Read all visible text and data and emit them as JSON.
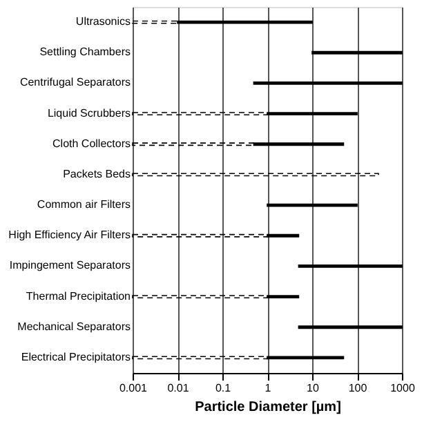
{
  "chart_data": {
    "type": "bar",
    "orientation": "horizontal",
    "xlabel": "Particle Diameter [µm]",
    "log": "x",
    "xlim": [
      0.001,
      1000
    ],
    "xticks": [
      0.001,
      0.01,
      0.1,
      1,
      10,
      100,
      1000
    ],
    "grid": "x",
    "categories": [
      "Ultrasonics",
      "Settling Chambers",
      "Centrifugal Separators",
      "Liquid Scrubbers",
      "Cloth Collectors",
      "Packets Beds",
      "Common air Filters",
      "High Efficiency Air Filters",
      "Impingement Separators",
      "Thermal Precipitation",
      "Mechanical Separators",
      "Electrical Precipitators"
    ],
    "series": [
      {
        "color": "#000000",
        "line_style": "solid",
        "base": [
          0.01,
          10,
          0.5,
          1,
          0.5,
          null,
          1,
          1,
          5,
          1,
          5,
          1
        ],
        "values": [
          9.99,
          990,
          999.5,
          99,
          49.5,
          null,
          99,
          4,
          995,
          4,
          995,
          49
        ]
      },
      {
        "color": "#000000",
        "line_style": "dashed",
        "base": [
          0.001,
          null,
          null,
          0.001,
          0.001,
          0.001,
          null,
          0.001,
          null,
          0.001,
          null,
          0.001
        ],
        "values": [
          0.009,
          null,
          null,
          0.999,
          0.499,
          299.999,
          null,
          0.999,
          null,
          0.999,
          null,
          0.999
        ]
      }
    ]
  }
}
